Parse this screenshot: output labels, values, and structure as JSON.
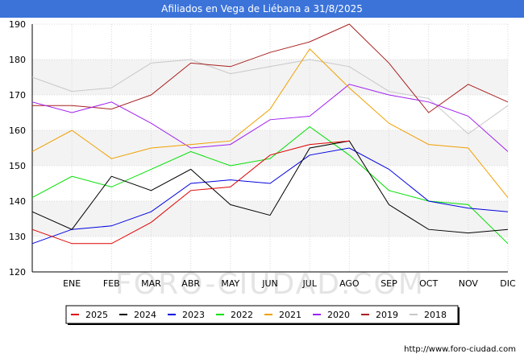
{
  "header": {
    "title": "Afiliados en Vega de Liébana a 31/8/2025"
  },
  "watermark": "FORO-CIUDAD.COM",
  "footer": {
    "url": "http://www.foro-ciudad.com"
  },
  "chart_data": {
    "type": "line",
    "title": "Afiliados en Vega de Liébana a 31/8/2025",
    "xlabel": "",
    "ylabel": "",
    "categories": [
      "",
      "ENE",
      "FEB",
      "MAR",
      "ABR",
      "MAY",
      "JUN",
      "JUL",
      "AGO",
      "SEP",
      "OCT",
      "NOV",
      "DIC"
    ],
    "ylim": [
      120,
      190
    ],
    "yticks": [
      120,
      130,
      140,
      150,
      160,
      170,
      180,
      190
    ],
    "grid": true,
    "legend_position": "bottom",
    "series": [
      {
        "name": "2018",
        "color": "#c8c8c8",
        "values": [
          175,
          171,
          172,
          179,
          180,
          176,
          178,
          180,
          178,
          171,
          169,
          159,
          167
        ]
      },
      {
        "name": "2019",
        "color": "#a82020",
        "values": [
          167,
          167,
          166,
          170,
          179,
          178,
          182,
          185,
          190,
          179,
          165,
          173,
          168
        ]
      },
      {
        "name": "2020",
        "color": "#a020f0",
        "values": [
          168,
          165,
          168,
          162,
          155,
          156,
          163,
          164,
          173,
          170,
          168,
          164,
          154
        ]
      },
      {
        "name": "2021",
        "color": "#f0a000",
        "values": [
          154,
          160,
          152,
          155,
          156,
          157,
          166,
          183,
          172,
          162,
          156,
          155,
          141
        ]
      },
      {
        "name": "2022",
        "color": "#00e000",
        "values": [
          141,
          147,
          144,
          149,
          154,
          150,
          152,
          161,
          153,
          143,
          140,
          139,
          128
        ]
      },
      {
        "name": "2023",
        "color": "#0000e0",
        "values": [
          128,
          132,
          133,
          137,
          145,
          146,
          145,
          153,
          155,
          149,
          140,
          138,
          137
        ]
      },
      {
        "name": "2024",
        "color": "#000000",
        "values": [
          137,
          132,
          147,
          143,
          149,
          139,
          136,
          155,
          157,
          139,
          132,
          131,
          132
        ]
      },
      {
        "name": "2025",
        "color": "#e00000",
        "values": [
          132,
          128,
          128,
          134,
          143,
          144,
          153,
          156,
          157,
          null,
          null,
          null,
          null
        ]
      }
    ],
    "legend_order": [
      "2025",
      "2024",
      "2023",
      "2022",
      "2021",
      "2020",
      "2019",
      "2018"
    ]
  }
}
